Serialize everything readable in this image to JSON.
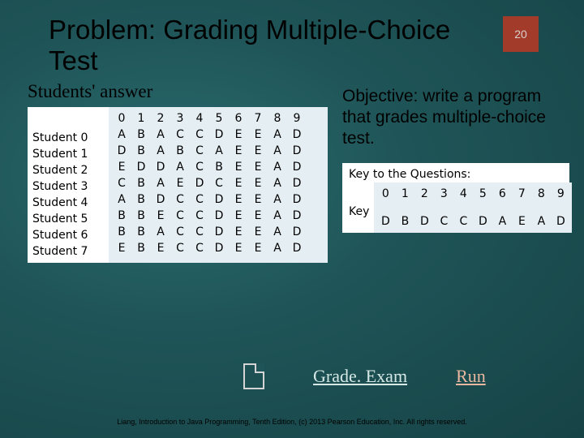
{
  "slide": {
    "number": "20",
    "title": "Problem: Grading Multiple-Choice Test",
    "accent_color": "#a33b2b",
    "bg_inner": "#2a6b6e",
    "bg_outer": "#164346"
  },
  "left": {
    "subhead": "Students' answer",
    "question_headers": [
      "0",
      "1",
      "2",
      "3",
      "4",
      "5",
      "6",
      "7",
      "8",
      "9"
    ],
    "students": [
      {
        "label": "Student   0",
        "answers": [
          "A",
          "B",
          "A",
          "C",
          "C",
          "D",
          "E",
          "E",
          "A",
          "D"
        ]
      },
      {
        "label": "Student   1",
        "answers": [
          "D",
          "B",
          "A",
          "B",
          "C",
          "A",
          "E",
          "E",
          "A",
          "D"
        ]
      },
      {
        "label": "Student   2",
        "answers": [
          "E",
          "D",
          "D",
          "A",
          "C",
          "B",
          "E",
          "E",
          "A",
          "D"
        ]
      },
      {
        "label": "Student   3",
        "answers": [
          "C",
          "B",
          "A",
          "E",
          "D",
          "C",
          "E",
          "E",
          "A",
          "D"
        ]
      },
      {
        "label": "Student   4",
        "answers": [
          "A",
          "B",
          "D",
          "C",
          "C",
          "D",
          "E",
          "E",
          "A",
          "D"
        ]
      },
      {
        "label": "Student   5",
        "answers": [
          "B",
          "B",
          "E",
          "C",
          "C",
          "D",
          "E",
          "E",
          "A",
          "D"
        ]
      },
      {
        "label": "Student   6",
        "answers": [
          "B",
          "B",
          "A",
          "C",
          "C",
          "D",
          "E",
          "E",
          "A",
          "D"
        ]
      },
      {
        "label": "Student   7",
        "answers": [
          "E",
          "B",
          "E",
          "C",
          "C",
          "D",
          "E",
          "E",
          "A",
          "D"
        ]
      }
    ]
  },
  "right": {
    "objective": "Objective: write a program that grades multiple-choice test.",
    "key_title": "Key to the Questions:",
    "key_headers": [
      "0",
      "1",
      "2",
      "3",
      "4",
      "5",
      "6",
      "7",
      "8",
      "9"
    ],
    "key_label": "Key",
    "key_values": [
      "D",
      "B",
      "D",
      "C",
      "C",
      "D",
      "A",
      "E",
      "A",
      "D"
    ]
  },
  "links": {
    "gradeexam": "Grade. Exam",
    "run": "Run"
  },
  "footer": "Liang, Introduction to Java Programming, Tenth Edition, (c) 2013 Pearson Education, Inc. All rights reserved.",
  "table_colors": {
    "cell_bg": "#e5eef3",
    "label_bg": "#ffffff"
  }
}
